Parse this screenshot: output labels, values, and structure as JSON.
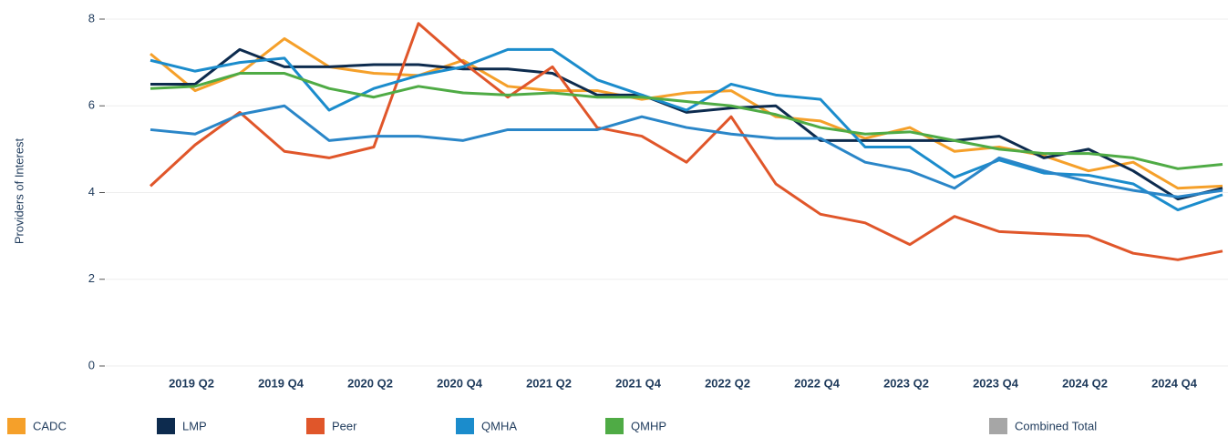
{
  "chart_data": {
    "type": "line",
    "y_label": "Providers of Interest",
    "categories": [
      null,
      "2019 Q2",
      null,
      "2019 Q4",
      null,
      "2020 Q2",
      null,
      "2020 Q4",
      null,
      "2021 Q2",
      null,
      "2021 Q4",
      null,
      "2022 Q2",
      null,
      "2022 Q4",
      null,
      "2023 Q2",
      null,
      "2023 Q4",
      null,
      "2024 Q2",
      null,
      "2024 Q4",
      null
    ],
    "series": [
      {
        "name": "CADC",
        "color": "#f5a02a",
        "values": [
          7.2,
          6.35,
          6.75,
          7.55,
          6.9,
          6.75,
          6.7,
          7.05,
          6.45,
          6.35,
          6.35,
          6.15,
          6.3,
          6.35,
          5.75,
          5.65,
          5.25,
          5.5,
          4.95,
          5.05,
          4.85,
          4.5,
          4.7,
          4.1,
          4.15
        ]
      },
      {
        "name": "LMP",
        "color": "#0d2b4e",
        "values": [
          6.5,
          6.5,
          7.3,
          6.9,
          6.9,
          6.95,
          6.95,
          6.85,
          6.85,
          6.75,
          6.25,
          6.25,
          5.85,
          5.95,
          6.0,
          5.2,
          5.2,
          5.2,
          5.2,
          5.3,
          4.8,
          5.0,
          4.5,
          3.85,
          4.1
        ]
      },
      {
        "name": "Peer",
        "color": "#e0562a",
        "values": [
          4.15,
          5.1,
          5.85,
          4.95,
          4.8,
          5.05,
          7.9,
          7.0,
          6.2,
          6.9,
          5.5,
          5.3,
          4.7,
          5.75,
          4.2,
          3.5,
          3.3,
          2.8,
          3.45,
          3.1,
          3.05,
          3.0,
          2.6,
          2.45,
          2.65
        ]
      },
      {
        "name": "QMHA",
        "color": "#1b8ccc",
        "values": [
          7.05,
          6.8,
          7.0,
          7.1,
          5.9,
          6.4,
          6.7,
          6.9,
          7.3,
          7.3,
          6.6,
          6.25,
          5.9,
          6.5,
          6.25,
          6.15,
          5.05,
          5.05,
          4.35,
          4.75,
          4.45,
          4.4,
          4.2,
          3.6,
          3.95
        ]
      },
      {
        "color": "#2a86c8",
        "values": [
          5.45,
          5.35,
          5.8,
          6.0,
          5.2,
          5.3,
          5.3,
          5.2,
          5.45,
          5.45,
          5.45,
          5.75,
          5.5,
          5.35,
          5.25,
          5.25,
          4.7,
          4.5,
          4.1,
          4.8,
          4.5,
          4.25,
          4.05,
          3.9,
          4.05
        ]
      },
      {
        "name": "QMHP",
        "color": "#4fab45",
        "values": [
          6.4,
          6.45,
          6.75,
          6.75,
          6.4,
          6.2,
          6.45,
          6.3,
          6.25,
          6.3,
          6.2,
          6.2,
          6.1,
          6.0,
          5.8,
          5.5,
          5.35,
          5.4,
          5.2,
          5.0,
          4.9,
          4.9,
          4.8,
          4.55,
          4.65
        ]
      },
      {
        "name": "Combined Total",
        "color": "#a6a6a6",
        "values": [
          null,
          null,
          null,
          null,
          null,
          null,
          null,
          null,
          null,
          null,
          null,
          null,
          null,
          null,
          null,
          null,
          null,
          null,
          null,
          null,
          null,
          null,
          null,
          null,
          null
        ]
      }
    ],
    "ylim": [
      0,
      8
    ],
    "yticks": [
      0,
      2,
      4,
      6,
      8
    ],
    "grid": true
  }
}
